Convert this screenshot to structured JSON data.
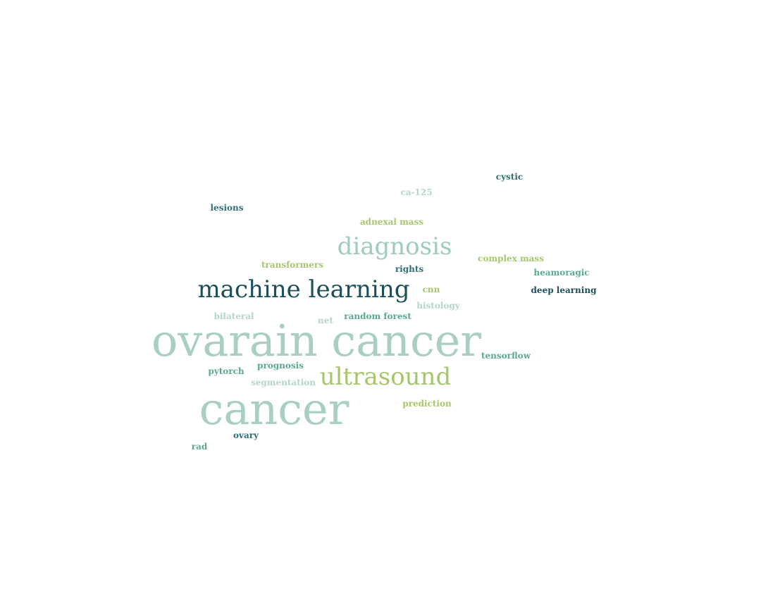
{
  "words": [
    {
      "id": "w1",
      "text": "cystic",
      "color": "#2e6f78",
      "weight": "bold",
      "size_class": "sm"
    },
    {
      "id": "w2",
      "text": "ca-125",
      "color": "#b3d6c9",
      "weight": "bold",
      "size_class": "sm"
    },
    {
      "id": "w3",
      "text": "lesions",
      "color": "#2e6f78",
      "weight": "bold",
      "size_class": "sm"
    },
    {
      "id": "w4",
      "text": "adnexal mass",
      "color": "#a6c66b",
      "weight": "bold",
      "size_class": "sm"
    },
    {
      "id": "w5",
      "text": "diagnosis",
      "color": "#9fcbbc",
      "weight": "normal",
      "size_class": "lg"
    },
    {
      "id": "w6",
      "text": "transformers",
      "color": "#a6c66b",
      "weight": "bold",
      "size_class": "sm"
    },
    {
      "id": "w7",
      "text": "rights",
      "color": "#2e6f78",
      "weight": "bold",
      "size_class": "sm"
    },
    {
      "id": "w8",
      "text": "complex mass",
      "color": "#a6c66b",
      "weight": "bold",
      "size_class": "sm"
    },
    {
      "id": "w9",
      "text": "heamoragic",
      "color": "#5aa98c",
      "weight": "bold",
      "size_class": "sm"
    },
    {
      "id": "w10",
      "text": "machine learning",
      "color": "#1b4f5a",
      "weight": "normal",
      "size_class": "lg"
    },
    {
      "id": "w11",
      "text": "cnn",
      "color": "#a6c66b",
      "weight": "bold",
      "size_class": "sm"
    },
    {
      "id": "w12",
      "text": "deep learning",
      "color": "#1b4f5a",
      "weight": "bold",
      "size_class": "sm"
    },
    {
      "id": "w13",
      "text": "histology",
      "color": "#b3d6c9",
      "weight": "bold",
      "size_class": "sm"
    },
    {
      "id": "w14",
      "text": "bilateral",
      "color": "#b3d6c9",
      "weight": "bold",
      "size_class": "sm"
    },
    {
      "id": "w15",
      "text": "net",
      "color": "#b3d6c9",
      "weight": "bold",
      "size_class": "sm"
    },
    {
      "id": "w16",
      "text": "random forest",
      "color": "#5aa98c",
      "weight": "bold",
      "size_class": "sm"
    },
    {
      "id": "w17",
      "text": "ovarain cancer",
      "color": "#a9cfc4",
      "weight": "normal",
      "size_class": "xxl"
    },
    {
      "id": "w18",
      "text": "tensorflow",
      "color": "#5aa98c",
      "weight": "bold",
      "size_class": "sm"
    },
    {
      "id": "w19",
      "text": "pytorch",
      "color": "#5aa98c",
      "weight": "bold",
      "size_class": "sm"
    },
    {
      "id": "w20",
      "text": "prognosis",
      "color": "#5aa98c",
      "weight": "bold",
      "size_class": "sm"
    },
    {
      "id": "w21",
      "text": "segmentation",
      "color": "#b3d6c9",
      "weight": "bold",
      "size_class": "sm"
    },
    {
      "id": "w22",
      "text": "ultrasound",
      "color": "#a6c66b",
      "weight": "normal",
      "size_class": "lg"
    },
    {
      "id": "w23",
      "text": "prediction",
      "color": "#a6c66b",
      "weight": "bold",
      "size_class": "sm"
    },
    {
      "id": "w24",
      "text": "cancer",
      "color": "#a9cfc4",
      "weight": "normal",
      "size_class": "huge"
    },
    {
      "id": "w25",
      "text": "ovary",
      "color": "#2e6f78",
      "weight": "bold",
      "size_class": "sm"
    },
    {
      "id": "w26",
      "text": "rad",
      "color": "#5aa98c",
      "weight": "bold",
      "size_class": "sm"
    }
  ]
}
